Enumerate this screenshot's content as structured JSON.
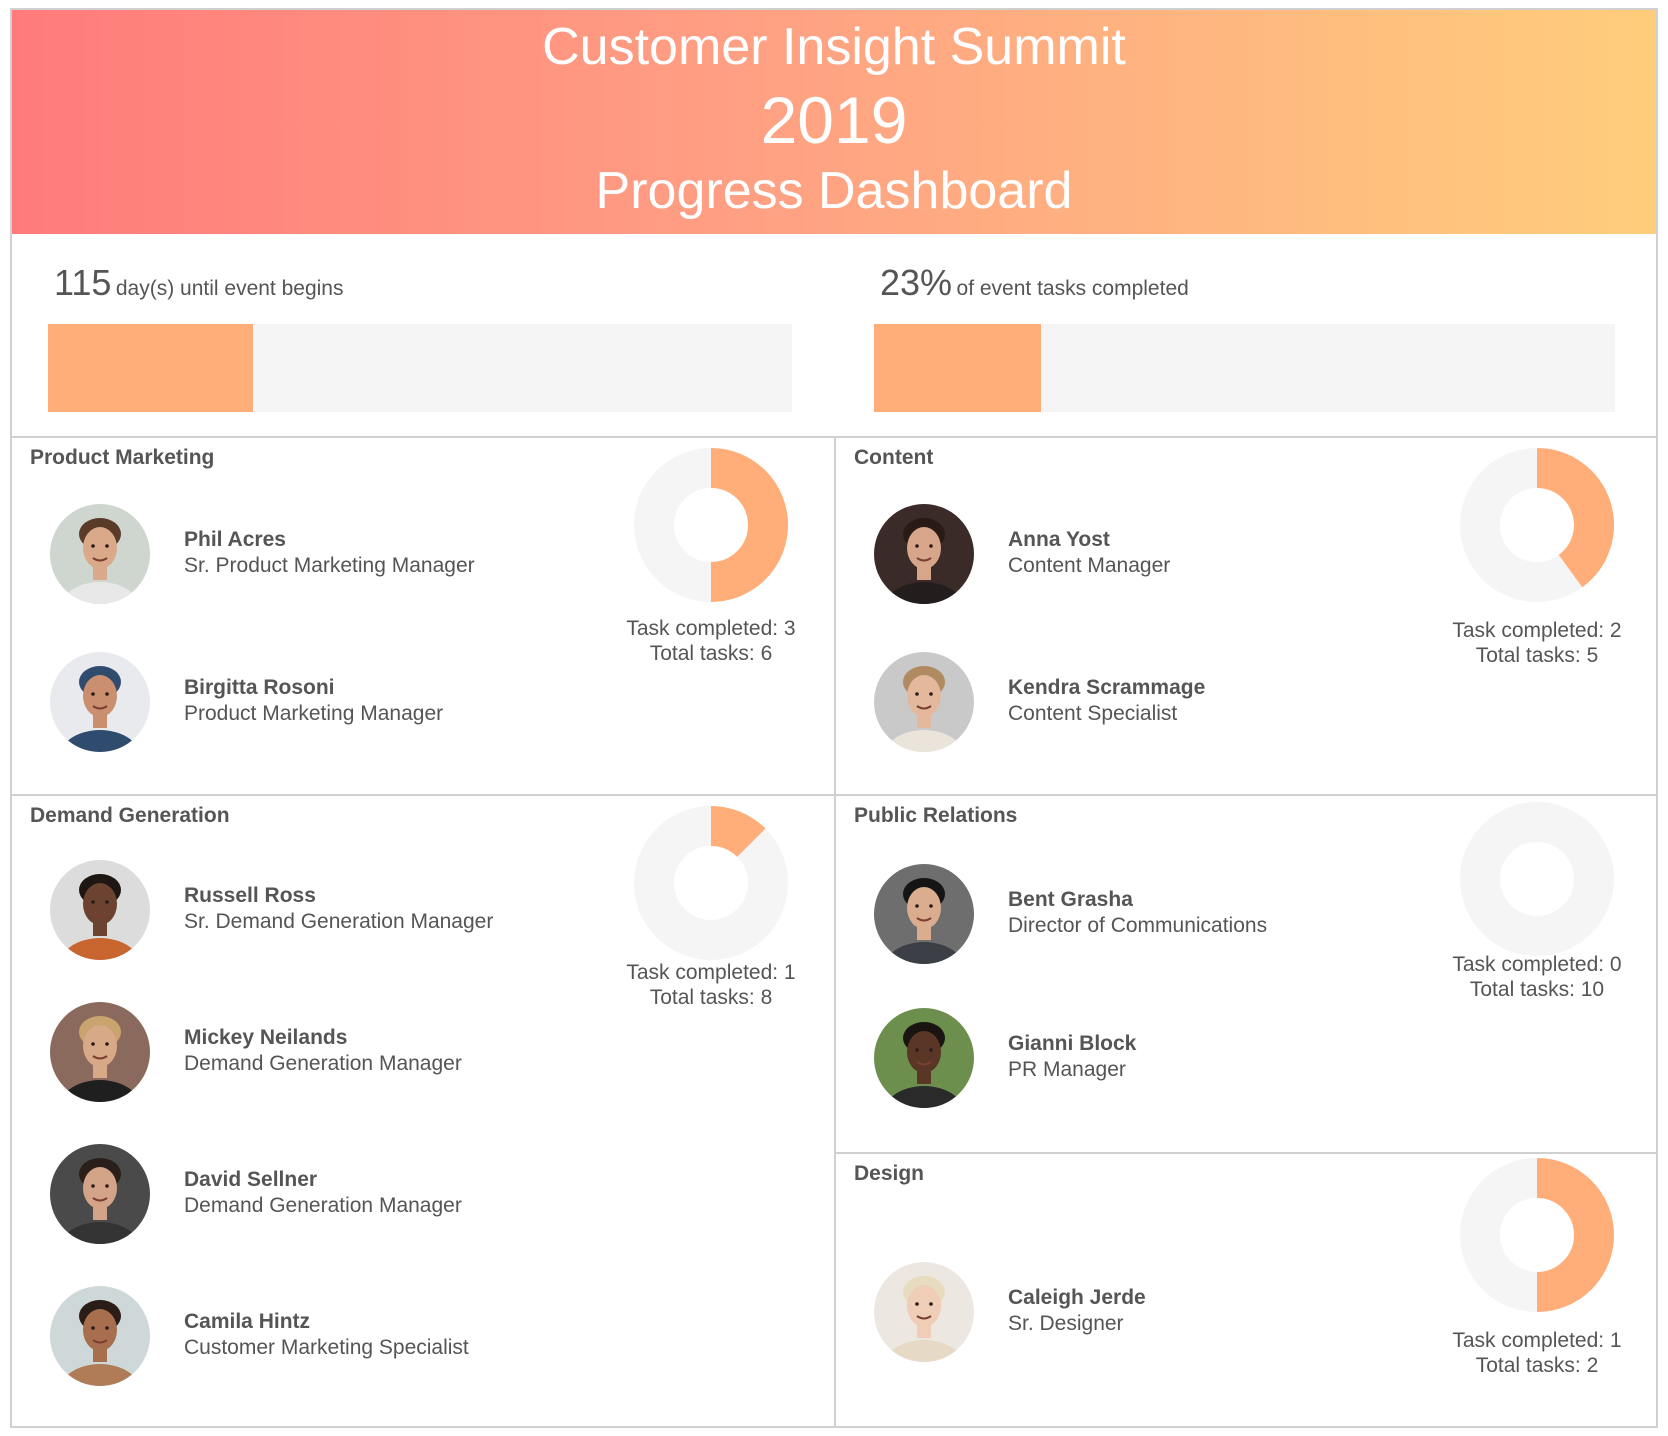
{
  "header": {
    "title_line1": "Customer Insight Summit",
    "title_line2": "2019",
    "title_line3": "Progress Dashboard"
  },
  "metrics": {
    "days": {
      "value": "115",
      "caption": "day(s) until event begins",
      "fill_fraction": 0.276
    },
    "tasks": {
      "value": "23%",
      "caption": "of event tasks completed",
      "fill_fraction": 0.226
    }
  },
  "colors": {
    "accent": "#ffae7a",
    "track": "#f5f5f5",
    "header_start": "#ff7b7b",
    "header_end": "#ffcd7c",
    "text": "#555555",
    "border": "#d0d0d0"
  },
  "panels": {
    "product_marketing": {
      "title": "Product Marketing",
      "members": [
        {
          "name": "Phil Acres",
          "role": "Sr. Product Marketing Manager"
        },
        {
          "name": "Birgitta Rosoni",
          "role": "Product Marketing Manager"
        }
      ],
      "completed_label": "Task completed: 3",
      "total_label": "Total tasks: 6",
      "completed": 3,
      "total": 6
    },
    "content": {
      "title": "Content",
      "members": [
        {
          "name": "Anna Yost",
          "role": "Content Manager"
        },
        {
          "name": "Kendra Scrammage",
          "role": "Content Specialist"
        }
      ],
      "completed_label": "Task completed: 2",
      "total_label": "Total tasks: 5",
      "completed": 2,
      "total": 5
    },
    "demand_generation": {
      "title": "Demand Generation",
      "members": [
        {
          "name": "Russell Ross",
          "role": "Sr. Demand Generation Manager"
        },
        {
          "name": "Mickey Neilands",
          "role": "Demand Generation Manager"
        },
        {
          "name": "David Sellner",
          "role": "Demand Generation Manager"
        },
        {
          "name": "Camila Hintz",
          "role": "Customer Marketing Specialist"
        }
      ],
      "completed_label": "Task completed: 1",
      "total_label": "Total tasks: 8",
      "completed": 1,
      "total": 8
    },
    "public_relations": {
      "title": "Public Relations",
      "members": [
        {
          "name": "Bent Grasha",
          "role": "Director of Communications"
        },
        {
          "name": "Gianni Block",
          "role": "PR Manager"
        }
      ],
      "completed_label": "Task completed: 0",
      "total_label": "Total tasks: 10",
      "completed": 0,
      "total": 10
    },
    "design": {
      "title": "Design",
      "members": [
        {
          "name": "Caleigh Jerde",
          "role": "Sr. Designer"
        }
      ],
      "completed_label": "Task completed: 1",
      "total_label": "Total tasks: 2",
      "completed": 1,
      "total": 2
    }
  },
  "avatars": {
    "phil": {
      "bg": "#cfd6cf",
      "skin": "#d9a98a",
      "hair": "#5a3a28",
      "shirt": "#e8e8e8"
    },
    "birgitta": {
      "bg": "#e9eaee",
      "skin": "#c98f6e",
      "hair": "#2f4b6e",
      "shirt": "#2f4b6e"
    },
    "russell": {
      "bg": "#dcdcdc",
      "skin": "#6b4330",
      "hair": "#1e1612",
      "shirt": "#c9662f"
    },
    "mickey": {
      "bg": "#8a6a5c",
      "skin": "#d8a987",
      "hair": "#c9a46f",
      "shirt": "#1f1f1f"
    },
    "david": {
      "bg": "#4a4a4a",
      "skin": "#d4a488",
      "hair": "#2a1f1a",
      "shirt": "#333333"
    },
    "camila": {
      "bg": "#cfd8d8",
      "skin": "#a86f4f",
      "hair": "#2a1c16",
      "shirt": "#b07c58"
    },
    "anna": {
      "bg": "#3a2b28",
      "skin": "#d7a589",
      "hair": "#2a1a16",
      "shirt": "#241d1d"
    },
    "kendra": {
      "bg": "#c9c9c9",
      "skin": "#e4b89c",
      "hair": "#b08a60",
      "shirt": "#ebe4da"
    },
    "bent": {
      "bg": "#6e6e6e",
      "skin": "#d9ad8e",
      "hair": "#141414",
      "shirt": "#3c3f46"
    },
    "gianni": {
      "bg": "#6c8f4e",
      "skin": "#5a3626",
      "hair": "#1a1412",
      "shirt": "#2a2a2a"
    },
    "caleigh": {
      "bg": "#ece7e0",
      "skin": "#f0cdb6",
      "hair": "#e8dcc0",
      "shirt": "#e6d9c6"
    }
  }
}
